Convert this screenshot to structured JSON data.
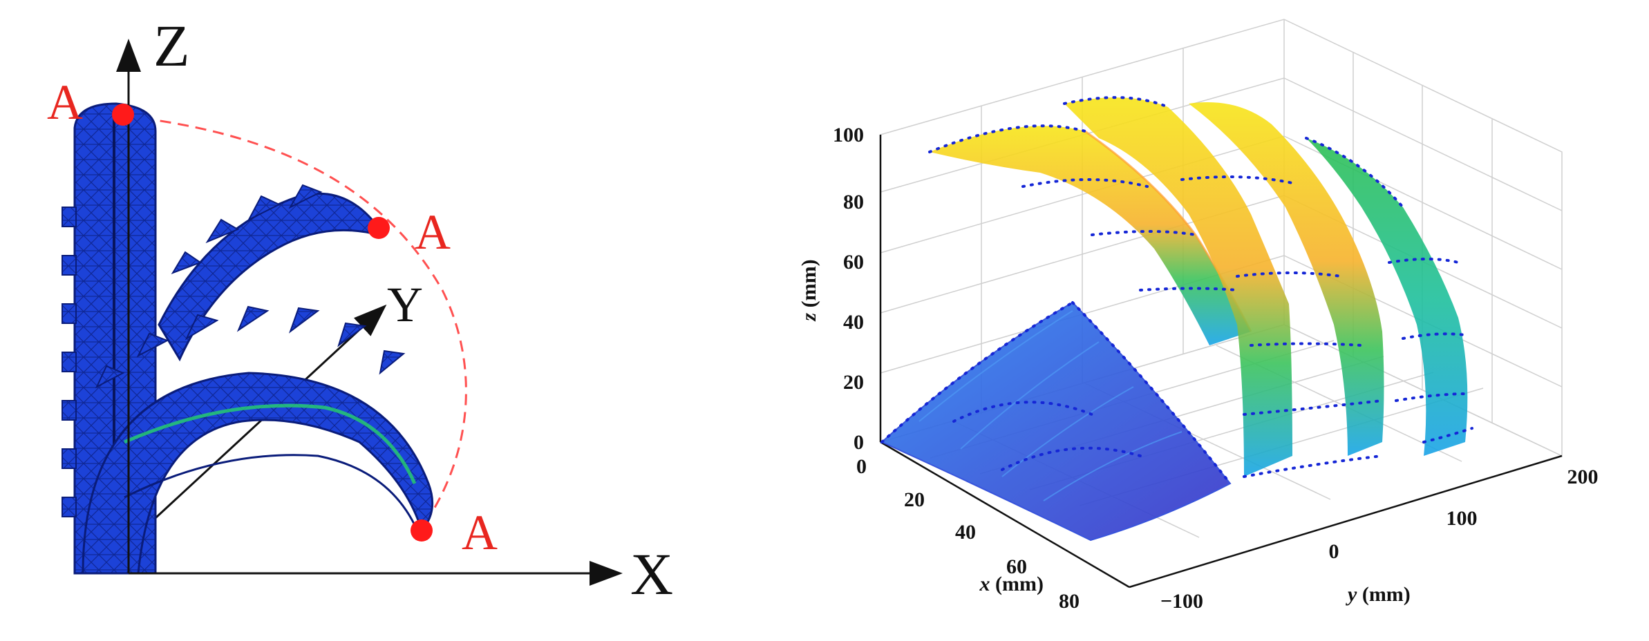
{
  "left_diagram": {
    "axis_labels": {
      "z": "Z",
      "y": "Y",
      "x": "X"
    },
    "point_labels": [
      "A",
      "A",
      "A"
    ],
    "colors": {
      "mesh": "#1a3fd4",
      "mesh_dark": "#0b1f8a",
      "point": "#ff1a1a",
      "trajectory": "#ff4b4b",
      "strain": "#27d36a"
    }
  },
  "chart_data": {
    "type": "surface3d",
    "xlabel_var": "x",
    "xlabel_unit": "(mm)",
    "ylabel_var": "y",
    "ylabel_unit": "(mm)",
    "zlabel_var": "z",
    "zlabel_unit": "(mm)",
    "x_ticks": [
      "0",
      "20",
      "40",
      "60",
      "80"
    ],
    "y_ticks": [
      "−100",
      "0",
      "100",
      "200"
    ],
    "z_ticks": [
      "0",
      "20",
      "40",
      "60",
      "80",
      "100"
    ],
    "xlim": [
      0,
      80
    ],
    "ylim": [
      -100,
      200
    ],
    "zlim": [
      0,
      100
    ],
    "grid": true,
    "colormap": "parula",
    "series": [
      {
        "values": [
          [
            0,
            0,
            3
          ],
          [
            20,
            40,
            40
          ],
          [
            65,
            80,
            0
          ]
        ]
      },
      {
        "values": [
          [
            20,
            -20,
            100
          ],
          [
            60,
            0,
            20
          ],
          [
            80,
            -10,
            0
          ]
        ]
      },
      {
        "values": [
          [
            20,
            20,
            110
          ],
          [
            60,
            40,
            25
          ],
          [
            80,
            30,
            0
          ]
        ]
      },
      {
        "values": [
          [
            20,
            60,
            110
          ],
          [
            60,
            80,
            25
          ],
          [
            80,
            70,
            0
          ]
        ]
      }
    ]
  }
}
